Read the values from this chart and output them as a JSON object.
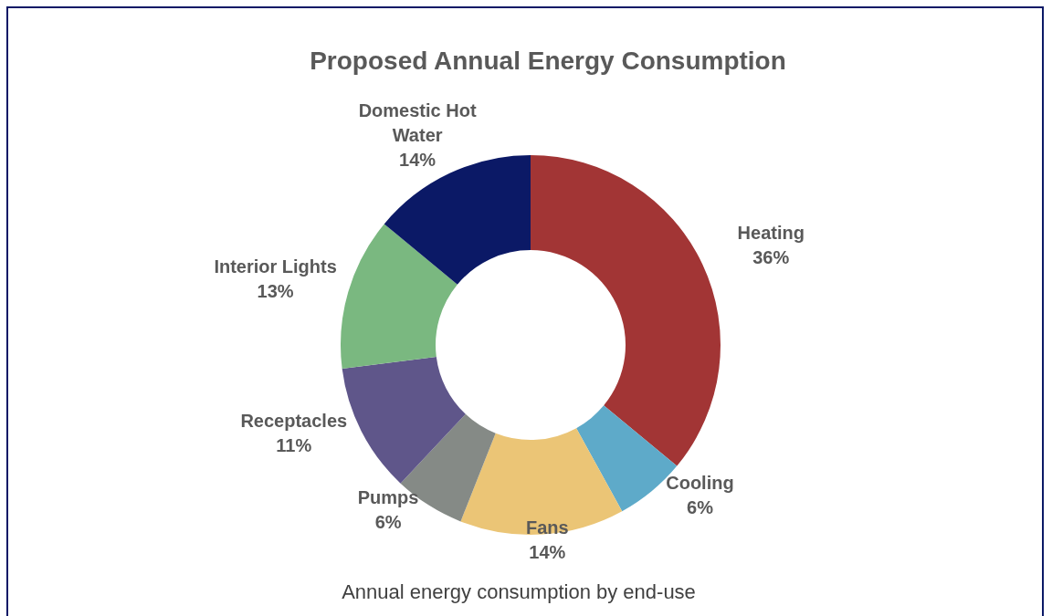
{
  "chart_data": {
    "type": "donut",
    "title": "Proposed Annual Energy Consumption",
    "annotations": [
      "Annual energy consumption by end-use"
    ],
    "categories": [
      "Heating",
      "Cooling",
      "Fans",
      "Pumps",
      "Receptacles",
      "Interior Lights",
      "Domestic Hot Water"
    ],
    "values": [
      36,
      6,
      14,
      6,
      11,
      13,
      14
    ],
    "colors": [
      "#a23535",
      "#5eaac9",
      "#ebc576",
      "#858a86",
      "#5f568a",
      "#7ab880",
      "#0b1966"
    ],
    "value_labels": [
      "36%",
      "6%",
      "14%",
      "6%",
      "11%",
      "13%",
      "14%"
    ],
    "legend": false
  }
}
